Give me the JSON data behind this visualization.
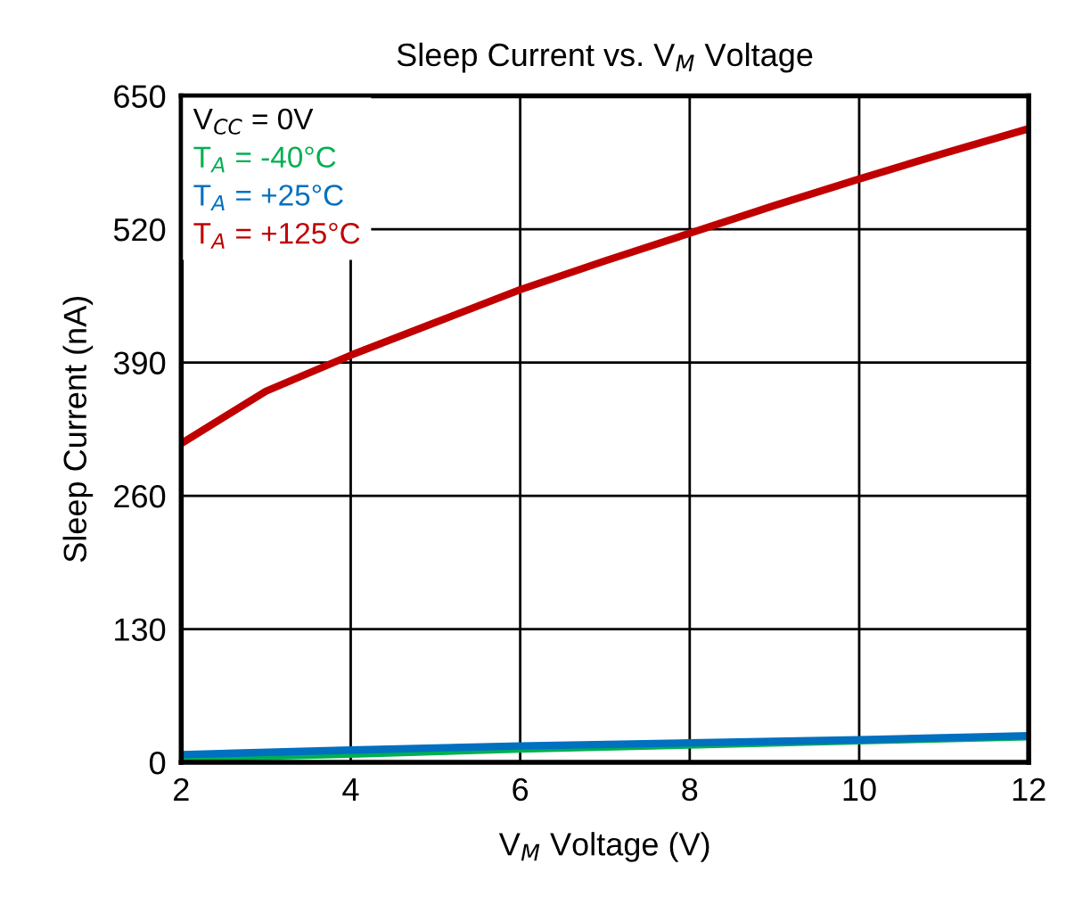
{
  "chart_data": {
    "type": "line",
    "title": "Sleep Current vs. V$_{M}$ Voltage",
    "xlabel": "V$_{M}$ Voltage (V)",
    "ylabel": "Sleep Current (nA)",
    "legend_title": "V$_{CC}$ = 0V",
    "xlim": [
      2,
      12
    ],
    "xticks": [
      2,
      4,
      6,
      8,
      10,
      12
    ],
    "ylim": [
      0,
      650
    ],
    "yticks": [
      0,
      130,
      260,
      390,
      520,
      650
    ],
    "grid": true,
    "legend": "top left",
    "series": [
      {
        "name": "T$_{A}$ = -40°C",
        "color": "#00b050",
        "x": [
          2,
          4,
          6,
          8,
          10,
          12
        ],
        "values": [
          4,
          8,
          13,
          17,
          21,
          25
        ]
      },
      {
        "name": "T$_{A}$ = +25°C",
        "color": "#0070c0",
        "x": [
          2,
          4,
          6,
          8,
          10,
          12
        ],
        "values": [
          7.5,
          12,
          16,
          19,
          22,
          26
        ]
      },
      {
        "name": "T$_{A}$ = +125°C",
        "color": "#c00000",
        "x": [
          2,
          3,
          4,
          5,
          6,
          7,
          8,
          9,
          10,
          11,
          12
        ],
        "values": [
          311,
          362,
          397,
          429,
          461,
          489,
          516,
          543,
          569,
          594,
          618
        ]
      }
    ]
  }
}
